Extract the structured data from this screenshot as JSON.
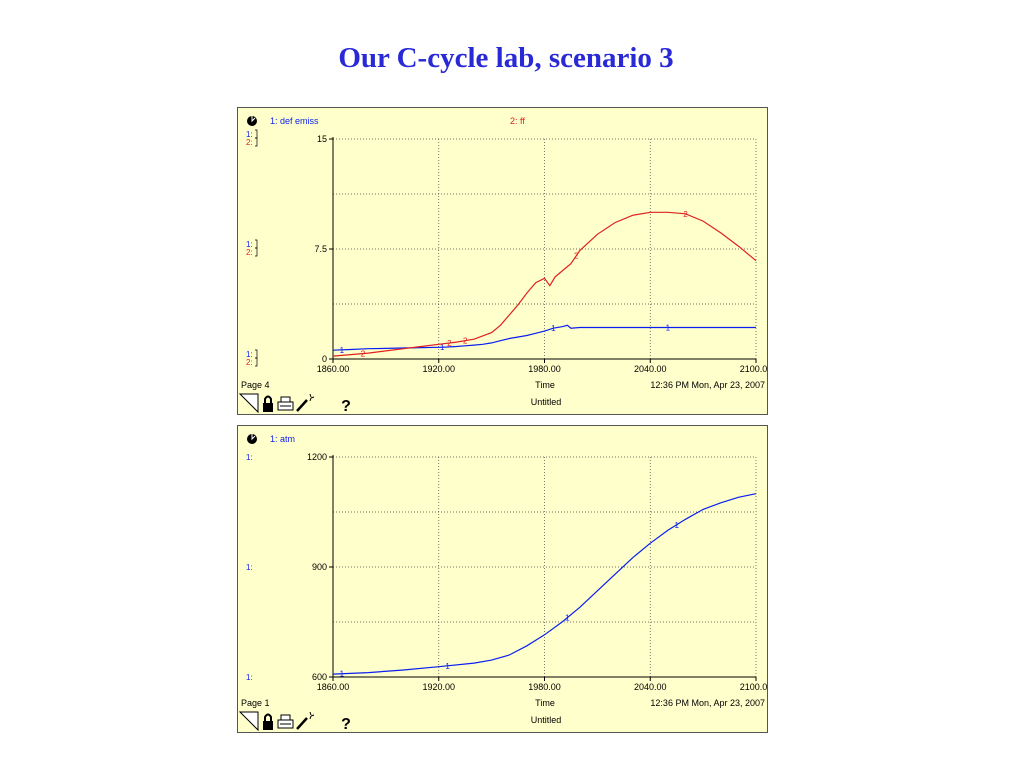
{
  "page": {
    "title": "Our C-cycle lab, scenario 3"
  },
  "colors": {
    "title": "#2929d6",
    "panel_bg": "#ffffcc",
    "series1": "#0a1ef0",
    "series2": "#e02020",
    "grid": "#555555"
  },
  "icons": [
    "page-corner-icon",
    "lock-icon",
    "printer-icon",
    "wand-icon",
    "help-icon"
  ],
  "panels": [
    {
      "page_label": "Page 4",
      "time_label": "Time",
      "timestamp": "12:36 PM  Mon, Apr 23, 2007",
      "untitled": "Untitled",
      "help": "?",
      "legend": [
        {
          "label": "1: def emiss",
          "color": "#0a1ef0"
        },
        {
          "label": "2: ff",
          "color": "#e02020"
        }
      ],
      "left_markers": [
        [
          "1:",
          "2:"
        ],
        [
          "1:",
          "2:"
        ],
        [
          "1:",
          "2:"
        ]
      ],
      "y_ticks": [
        "15",
        "7.5",
        "0"
      ],
      "x_ticks": [
        "1860.00",
        "1920.00",
        "1980.00",
        "2040.00",
        "2100.00"
      ],
      "chart_data": {
        "type": "line",
        "x_range": [
          1860,
          2100
        ],
        "ylim": [
          0,
          15
        ],
        "grid": true,
        "series": [
          {
            "name": "1: def emiss",
            "marker": "1",
            "color": "#0a1ef0",
            "x": [
              1860,
              1870,
              1880,
              1890,
              1900,
              1910,
              1920,
              1925,
              1930,
              1935,
              1940,
              1945,
              1950,
              1955,
              1960,
              1965,
              1970,
              1975,
              1980,
              1985,
              1990,
              1993,
              1995,
              2000,
              2010,
              2020,
              2040,
              2060,
              2080,
              2100
            ],
            "y": [
              0.6,
              0.65,
              0.7,
              0.72,
              0.75,
              0.78,
              0.8,
              0.82,
              0.85,
              0.9,
              0.95,
              1.0,
              1.1,
              1.25,
              1.4,
              1.5,
              1.6,
              1.75,
              1.9,
              2.1,
              2.2,
              2.3,
              2.1,
              2.15,
              2.15,
              2.15,
              2.15,
              2.15,
              2.15,
              2.15
            ],
            "markers_at": [
              1865,
              1922,
              1985,
              2050
            ]
          },
          {
            "name": "2: ff",
            "marker": "2",
            "color": "#e02020",
            "x": [
              1860,
              1870,
              1880,
              1890,
              1900,
              1910,
              1920,
              1930,
              1940,
              1950,
              1955,
              1960,
              1965,
              1970,
              1975,
              1980,
              1983,
              1986,
              1990,
              1995,
              2000,
              2010,
              2020,
              2030,
              2040,
              2050,
              2060,
              2070,
              2080,
              2090,
              2100
            ],
            "y": [
              0.2,
              0.3,
              0.4,
              0.55,
              0.7,
              0.85,
              1.0,
              1.15,
              1.35,
              1.8,
              2.3,
              3.0,
              3.7,
              4.5,
              5.2,
              5.5,
              5.0,
              5.6,
              6.0,
              6.5,
              7.4,
              8.5,
              9.3,
              9.8,
              10.0,
              10.0,
              9.9,
              9.4,
              8.6,
              7.7,
              6.7
            ],
            "markers_at": [
              1877,
              1926,
              1935,
              1998,
              2060
            ]
          }
        ]
      }
    },
    {
      "page_label": "Page 1",
      "time_label": "Time",
      "timestamp": "12:36 PM  Mon, Apr 23, 2007",
      "untitled": "Untitled",
      "help": "?",
      "legend": [
        {
          "label": "1: atm",
          "color": "#0a1ef0"
        }
      ],
      "left_markers": [
        [
          "1:"
        ],
        [
          "1:"
        ],
        [
          "1:"
        ]
      ],
      "y_ticks": [
        "1200",
        "900",
        "600"
      ],
      "x_ticks": [
        "1860.00",
        "1920.00",
        "1980.00",
        "2040.00",
        "2100.00"
      ],
      "chart_data": {
        "type": "line",
        "x_range": [
          1860,
          2100
        ],
        "ylim": [
          600,
          1200
        ],
        "grid": true,
        "series": [
          {
            "name": "1: atm",
            "marker": "1",
            "color": "#0a1ef0",
            "x": [
              1860,
              1880,
              1900,
              1920,
              1940,
              1950,
              1960,
              1970,
              1980,
              1990,
              2000,
              2010,
              2020,
              2030,
              2040,
              2050,
              2060,
              2070,
              2080,
              2090,
              2100
            ],
            "y": [
              608,
              612,
              619,
              628,
              638,
              646,
              660,
              685,
              715,
              750,
              790,
              835,
              880,
              925,
              965,
              1000,
              1030,
              1057,
              1075,
              1090,
              1100
            ],
            "markers_at": [
              1865,
              1925,
              1993,
              2055
            ]
          }
        ]
      }
    }
  ]
}
